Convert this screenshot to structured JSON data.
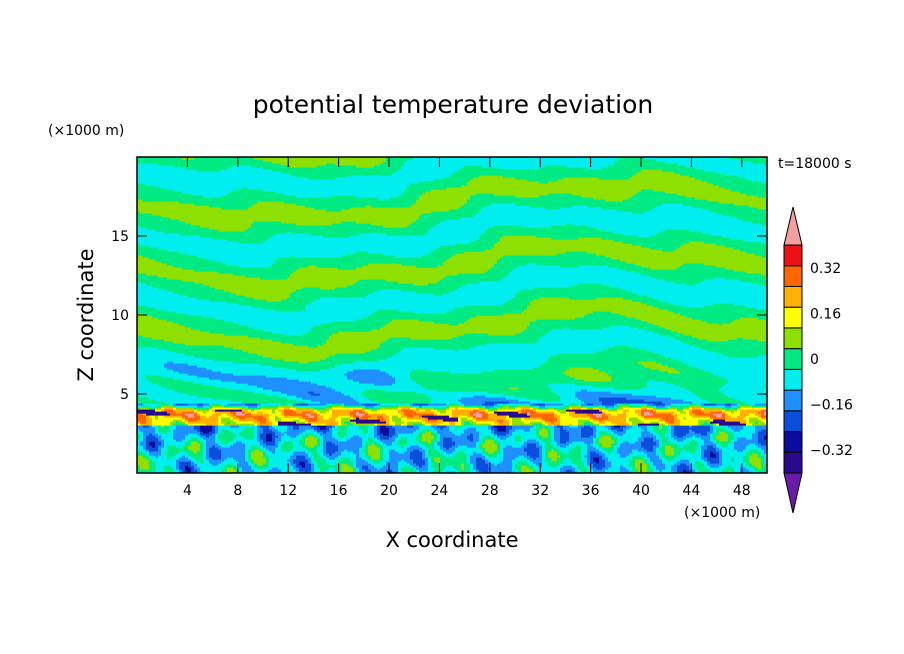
{
  "chart_data": {
    "type": "heatmap",
    "title": "potential temperature deviation",
    "time_label": "t=18000 s",
    "xlabel": "X coordinate",
    "ylabel": "Z coordinate",
    "x_unit": "(×1000 m)",
    "y_unit": "(×1000 m)",
    "xlim": [
      0,
      50
    ],
    "ylim": [
      0,
      20
    ],
    "x_ticks": [
      "4",
      "8",
      "12",
      "16",
      "20",
      "24",
      "28",
      "32",
      "36",
      "40",
      "44",
      "48"
    ],
    "x_tick_values": [
      4,
      8,
      12,
      16,
      20,
      24,
      28,
      32,
      36,
      40,
      44,
      48
    ],
    "y_ticks": [
      "5",
      "10",
      "15"
    ],
    "y_tick_values": [
      5,
      10,
      15
    ],
    "colorbar": {
      "levels": [
        -0.4,
        -0.32,
        -0.24,
        -0.16,
        -0.08,
        0,
        0.08,
        0.16,
        0.24,
        0.32,
        0.4
      ],
      "colors": [
        "#2a0a8a",
        "#0c0c9c",
        "#0a4fdc",
        "#1e90ff",
        "#00eeee",
        "#00ea84",
        "#8ee000",
        "#ffff00",
        "#ffb000",
        "#ff6600",
        "#ee1111"
      ],
      "under_color": "#6a1aa8",
      "over_color": "#f4a0a0",
      "labels": [
        "0.32",
        "0.16",
        "0",
        "−0.16",
        "−0.32"
      ],
      "label_values": [
        0.32,
        0.16,
        0,
        -0.16,
        -0.32
      ]
    },
    "field_description": [
      {
        "z_range": [
          7,
          20
        ],
        "dominant_value": 0.04,
        "note": "alternating bands of 0..0.08 and -0.08..0"
      },
      {
        "z_range": [
          4.5,
          7
        ],
        "dominant_value": -0.04,
        "note": "weak negative bands with small cyan patches"
      },
      {
        "z_range": [
          3,
          4.3
        ],
        "dominant_value": 0.2,
        "note": "strong inversion layer, red/orange with embedded dark-blue blobs"
      },
      {
        "z_range": [
          0,
          3
        ],
        "dominant_value": -0.06,
        "note": "turbulent boundary layer, cyan/green with yellow plumes"
      }
    ]
  }
}
